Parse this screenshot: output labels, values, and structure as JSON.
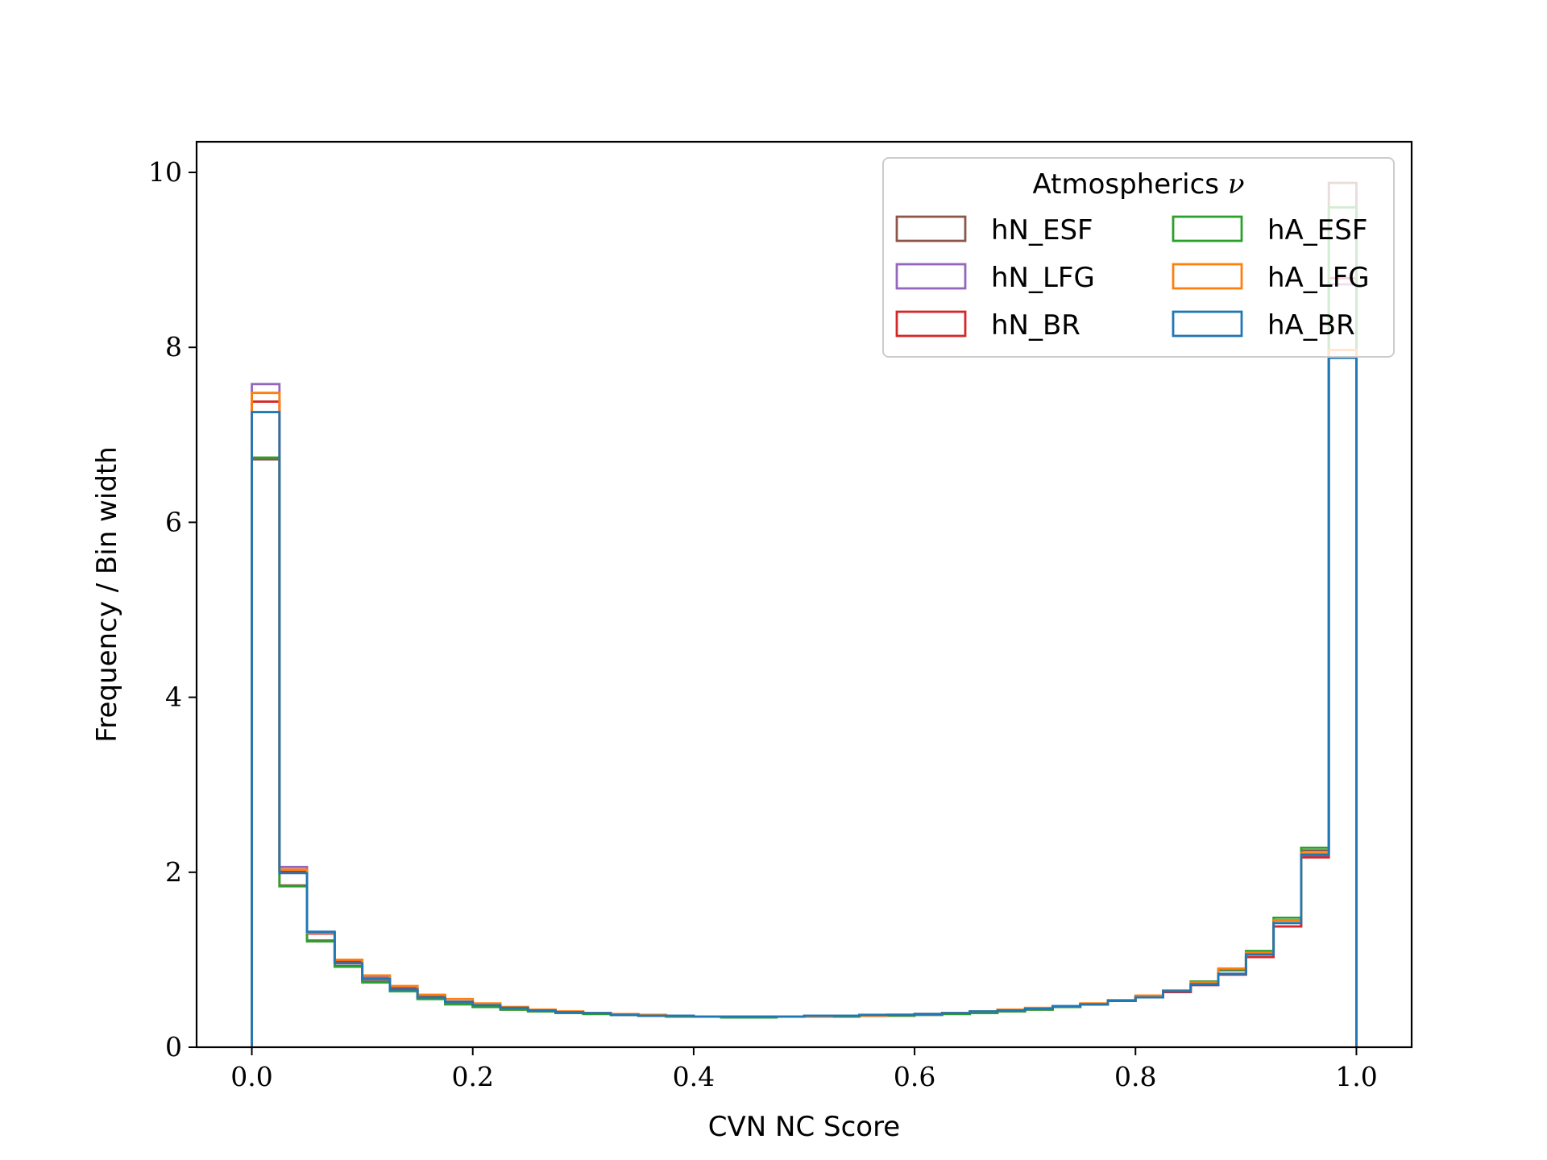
{
  "chart_data": {
    "type": "histogram-step",
    "xlabel": "CVN NC Score",
    "ylabel": "Frequency / Bin width",
    "xlim": [
      -0.05,
      1.05
    ],
    "ylim": [
      0,
      10.35
    ],
    "xticks": [
      0.0,
      0.2,
      0.4,
      0.6,
      0.8,
      1.0
    ],
    "xtick_labels": [
      "0.0",
      "0.2",
      "0.4",
      "0.6",
      "0.8",
      "1.0"
    ],
    "yticks": [
      0,
      2,
      4,
      6,
      8,
      10
    ],
    "ytick_labels": [
      "0",
      "2",
      "4",
      "6",
      "8",
      "10"
    ],
    "grid": false,
    "legend": {
      "title": "Atmospherics",
      "title_symbol": "ν",
      "placement": "top-right",
      "columns": 2
    },
    "bin_edges": [
      0.0,
      0.025,
      0.05,
      0.075,
      0.1,
      0.125,
      0.15,
      0.175,
      0.2,
      0.225,
      0.25,
      0.275,
      0.3,
      0.325,
      0.35,
      0.375,
      0.4,
      0.425,
      0.45,
      0.475,
      0.5,
      0.525,
      0.55,
      0.575,
      0.6,
      0.625,
      0.65,
      0.675,
      0.7,
      0.725,
      0.75,
      0.775,
      0.8,
      0.825,
      0.85,
      0.875,
      0.9,
      0.925,
      0.95,
      0.975,
      1.0
    ],
    "series": [
      {
        "name": "hN_ESF",
        "color": "#8c564b",
        "values": [
          6.72,
          1.85,
          1.22,
          0.93,
          0.75,
          0.65,
          0.56,
          0.5,
          0.46,
          0.43,
          0.41,
          0.39,
          0.38,
          0.37,
          0.36,
          0.35,
          0.35,
          0.34,
          0.34,
          0.35,
          0.35,
          0.35,
          0.36,
          0.36,
          0.37,
          0.38,
          0.39,
          0.41,
          0.43,
          0.46,
          0.49,
          0.53,
          0.58,
          0.65,
          0.75,
          0.88,
          1.08,
          1.45,
          2.25,
          9.88
        ]
      },
      {
        "name": "hN_LFG",
        "color": "#9467bd",
        "values": [
          7.58,
          2.06,
          1.31,
          1.0,
          0.8,
          0.68,
          0.59,
          0.52,
          0.48,
          0.45,
          0.42,
          0.4,
          0.39,
          0.37,
          0.36,
          0.36,
          0.35,
          0.35,
          0.35,
          0.35,
          0.35,
          0.36,
          0.36,
          0.37,
          0.38,
          0.39,
          0.4,
          0.42,
          0.44,
          0.46,
          0.49,
          0.53,
          0.57,
          0.63,
          0.71,
          0.83,
          1.03,
          1.38,
          2.18,
          8.72
        ]
      },
      {
        "name": "hN_BR",
        "color": "#d62728",
        "values": [
          7.38,
          2.01,
          1.3,
          0.98,
          0.78,
          0.67,
          0.58,
          0.52,
          0.48,
          0.45,
          0.42,
          0.4,
          0.39,
          0.37,
          0.36,
          0.36,
          0.35,
          0.35,
          0.35,
          0.35,
          0.35,
          0.36,
          0.36,
          0.37,
          0.38,
          0.39,
          0.4,
          0.42,
          0.44,
          0.46,
          0.49,
          0.53,
          0.57,
          0.63,
          0.71,
          0.83,
          1.03,
          1.38,
          2.17,
          8.79
        ]
      },
      {
        "name": "hA_ESF",
        "color": "#2ca02c",
        "values": [
          6.74,
          1.84,
          1.21,
          0.92,
          0.74,
          0.64,
          0.55,
          0.49,
          0.46,
          0.43,
          0.41,
          0.39,
          0.38,
          0.37,
          0.36,
          0.35,
          0.35,
          0.34,
          0.34,
          0.35,
          0.35,
          0.35,
          0.36,
          0.36,
          0.37,
          0.38,
          0.39,
          0.41,
          0.43,
          0.46,
          0.49,
          0.53,
          0.58,
          0.65,
          0.75,
          0.89,
          1.1,
          1.48,
          2.28,
          9.6
        ]
      },
      {
        "name": "hA_LFG",
        "color": "#ff7f0e",
        "values": [
          7.48,
          2.03,
          1.31,
          1.0,
          0.82,
          0.7,
          0.6,
          0.55,
          0.5,
          0.46,
          0.43,
          0.41,
          0.39,
          0.38,
          0.37,
          0.36,
          0.35,
          0.35,
          0.35,
          0.35,
          0.35,
          0.36,
          0.36,
          0.37,
          0.38,
          0.39,
          0.41,
          0.43,
          0.45,
          0.47,
          0.5,
          0.54,
          0.59,
          0.65,
          0.74,
          0.9,
          1.08,
          1.45,
          2.22,
          7.97
        ]
      },
      {
        "name": "hA_BR",
        "color": "#1f77b4",
        "values": [
          7.26,
          1.99,
          1.32,
          0.96,
          0.78,
          0.66,
          0.57,
          0.52,
          0.48,
          0.45,
          0.42,
          0.4,
          0.39,
          0.37,
          0.36,
          0.36,
          0.35,
          0.35,
          0.35,
          0.35,
          0.36,
          0.36,
          0.37,
          0.37,
          0.38,
          0.39,
          0.41,
          0.42,
          0.44,
          0.47,
          0.49,
          0.53,
          0.57,
          0.64,
          0.72,
          0.84,
          1.06,
          1.42,
          2.2,
          7.88
        ]
      }
    ]
  }
}
